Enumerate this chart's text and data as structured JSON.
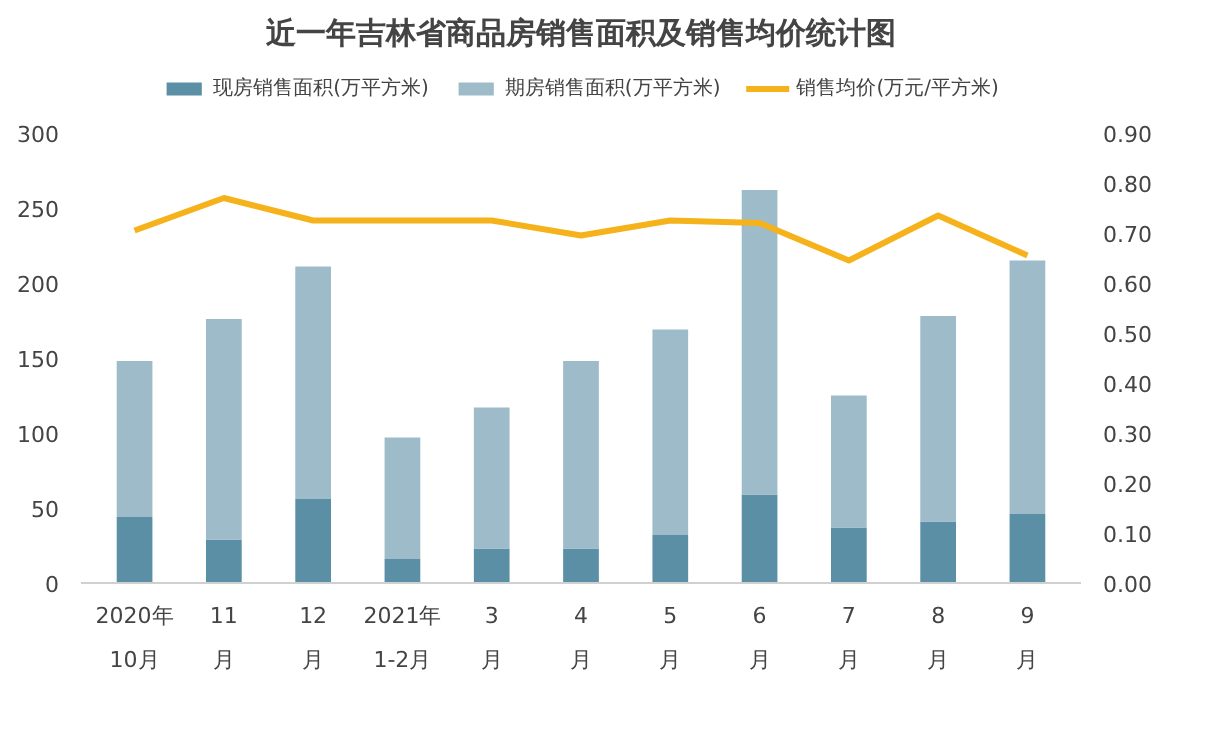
{
  "chart_data": {
    "type": "bar",
    "title": "近一年吉林省商品房销售面积及销售均价统计图",
    "categories": [
      "2020年\n10月",
      "11\n月",
      "12\n月",
      "2021年\n1-2月",
      "3\n月",
      "4\n月",
      "5\n月",
      "6\n月",
      "7\n月",
      "8\n月",
      "9\n月"
    ],
    "stacked": true,
    "series": [
      {
        "name": "现房销售面积(万平方米)",
        "color": "#5b8fa6",
        "values": [
          44,
          29,
          56,
          16,
          23,
          23,
          32,
          59,
          37,
          41,
          46
        ]
      },
      {
        "name": "期房销售面积(万平方米)",
        "color": "#9dbbc8",
        "values": [
          104,
          147,
          155,
          81,
          94,
          125,
          137,
          203,
          88,
          137,
          169
        ]
      },
      {
        "name": "销售均价(万元/平方米)",
        "type": "line",
        "axis": "y2",
        "color": "#f5b21b",
        "values": [
          0.705,
          0.77,
          0.725,
          0.725,
          0.725,
          0.695,
          0.725,
          0.72,
          0.645,
          0.735,
          0.655
        ]
      }
    ],
    "ylim": [
      0,
      300
    ],
    "yticks": [
      0,
      50,
      100,
      150,
      200,
      250,
      300
    ],
    "y2lim": [
      0,
      0.9
    ],
    "y2ticks": [
      {
        "value": 0,
        "label": "0.00"
      },
      {
        "value": 0.1,
        "label": "0.10"
      },
      {
        "value": 0.2,
        "label": "0.20"
      },
      {
        "value": 0.3,
        "label": "0.30"
      },
      {
        "value": 0.4,
        "label": "0.40"
      },
      {
        "value": 0.5,
        "label": "0.50"
      },
      {
        "value": 0.6,
        "label": "0.60"
      },
      {
        "value": 0.7,
        "label": "0.70"
      },
      {
        "value": 0.8,
        "label": "0.80"
      },
      {
        "value": 0.9,
        "label": "0.90"
      }
    ],
    "grid": false,
    "legend": "top"
  }
}
